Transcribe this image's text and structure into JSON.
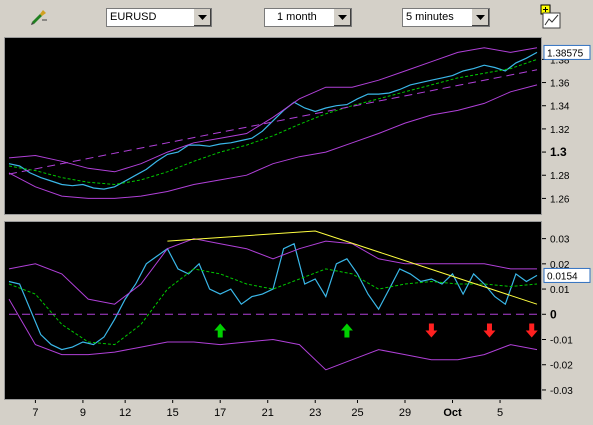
{
  "toolbar": {
    "symbol": "EURUSD",
    "range": "1 month",
    "interval": "5 minutes"
  },
  "colors": {
    "price": "#3ab7e8",
    "band": "#b040d8",
    "ma": "#00c800",
    "trend": "#ffff40",
    "up_arrow": "#00d000",
    "down_arrow": "#ff2020",
    "last_value_border": "#3070c0"
  },
  "chart_data": [
    {
      "type": "line",
      "panel": "price",
      "ylim": [
        1.25,
        1.395
      ],
      "yticks": [
        "1.26",
        "1.28",
        "1.3",
        "1.32",
        "1.34",
        "1.36",
        "1.38"
      ],
      "bold_ticks": [
        "1.3"
      ],
      "last_value": "1.38575",
      "xlim": [
        0,
        100
      ],
      "series": [
        {
          "role": "price",
          "x": [
            0,
            2,
            4,
            6,
            8,
            10,
            12,
            14,
            16,
            18,
            20,
            22,
            24,
            26,
            28,
            30,
            32,
            34,
            36,
            38,
            40,
            42,
            44,
            46,
            48,
            50,
            52,
            54,
            56,
            58,
            60,
            62,
            64,
            66,
            68,
            70,
            72,
            74,
            76,
            78,
            80,
            82,
            84,
            86,
            88,
            90,
            92,
            94,
            96,
            98,
            100
          ],
          "y": [
            1.29,
            1.288,
            1.282,
            1.278,
            1.275,
            1.272,
            1.271,
            1.272,
            1.269,
            1.268,
            1.27,
            1.275,
            1.28,
            1.285,
            1.292,
            1.298,
            1.3,
            1.306,
            1.306,
            1.305,
            1.307,
            1.308,
            1.31,
            1.312,
            1.318,
            1.327,
            1.336,
            1.343,
            1.338,
            1.335,
            1.338,
            1.34,
            1.341,
            1.346,
            1.35,
            1.35,
            1.351,
            1.354,
            1.358,
            1.36,
            1.362,
            1.364,
            1.366,
            1.37,
            1.372,
            1.375,
            1.373,
            1.37,
            1.377,
            1.381,
            1.386
          ]
        },
        {
          "role": "ma",
          "x": [
            0,
            5,
            10,
            15,
            20,
            25,
            30,
            35,
            40,
            45,
            50,
            55,
            60,
            65,
            70,
            75,
            80,
            85,
            90,
            95,
            100
          ],
          "y": [
            1.288,
            1.284,
            1.278,
            1.274,
            1.272,
            1.276,
            1.283,
            1.292,
            1.3,
            1.306,
            1.314,
            1.324,
            1.333,
            1.34,
            1.346,
            1.352,
            1.358,
            1.364,
            1.368,
            1.372,
            1.38
          ]
        },
        {
          "role": "upper_band",
          "x": [
            0,
            5,
            10,
            15,
            20,
            25,
            30,
            35,
            40,
            45,
            50,
            55,
            60,
            65,
            70,
            75,
            80,
            85,
            90,
            95,
            100
          ],
          "y": [
            1.295,
            1.297,
            1.292,
            1.286,
            1.283,
            1.29,
            1.3,
            1.308,
            1.312,
            1.316,
            1.33,
            1.346,
            1.356,
            1.356,
            1.362,
            1.37,
            1.378,
            1.386,
            1.39,
            1.386,
            1.39
          ]
        },
        {
          "role": "lower_band",
          "x": [
            0,
            5,
            10,
            15,
            20,
            25,
            30,
            35,
            40,
            45,
            50,
            55,
            60,
            65,
            70,
            75,
            80,
            85,
            90,
            95,
            100
          ],
          "y": [
            1.282,
            1.27,
            1.262,
            1.26,
            1.26,
            1.262,
            1.266,
            1.272,
            1.276,
            1.28,
            1.29,
            1.296,
            1.3,
            1.308,
            1.316,
            1.325,
            1.332,
            1.336,
            1.342,
            1.352,
            1.358
          ]
        },
        {
          "role": "trend",
          "x": [
            0,
            100
          ],
          "y": [
            1.281,
            1.371
          ]
        }
      ]
    },
    {
      "type": "line",
      "panel": "oscillator",
      "ylim": [
        -0.032,
        0.035
      ],
      "yticks": [
        "0.03",
        "0.02",
        "0.01",
        "0",
        "-0.01",
        "-0.02",
        "-0.03"
      ],
      "bold_ticks": [
        "0"
      ],
      "last_value": "0.0154",
      "xlim": [
        0,
        100
      ],
      "xticks": [
        {
          "label": "7",
          "x": 5
        },
        {
          "label": "9",
          "x": 14
        },
        {
          "label": "12",
          "x": 22
        },
        {
          "label": "15",
          "x": 31
        },
        {
          "label": "17",
          "x": 40
        },
        {
          "label": "21",
          "x": 49
        },
        {
          "label": "23",
          "x": 58
        },
        {
          "label": "25",
          "x": 66
        },
        {
          "label": "29",
          "x": 75
        },
        {
          "label": "Oct",
          "x": 84
        },
        {
          "label": "5",
          "x": 93
        }
      ],
      "bold_xticks": [
        "Oct"
      ],
      "series": [
        {
          "role": "oscillator",
          "x": [
            0,
            2,
            4,
            6,
            8,
            10,
            12,
            14,
            16,
            18,
            20,
            22,
            24,
            26,
            28,
            30,
            32,
            34,
            36,
            38,
            40,
            42,
            44,
            46,
            48,
            50,
            52,
            54,
            56,
            58,
            60,
            62,
            64,
            66,
            68,
            70,
            72,
            74,
            76,
            78,
            80,
            82,
            84,
            86,
            88,
            90,
            92,
            94,
            96,
            98,
            100
          ],
          "y": [
            0.013,
            0.012,
            0.002,
            -0.008,
            -0.012,
            -0.014,
            -0.013,
            -0.011,
            -0.012,
            -0.009,
            -0.002,
            0.006,
            0.012,
            0.02,
            0.023,
            0.026,
            0.018,
            0.016,
            0.02,
            0.01,
            0.008,
            0.01,
            0.004,
            0.007,
            0.008,
            0.01,
            0.026,
            0.028,
            0.012,
            0.014,
            0.007,
            0.02,
            0.022,
            0.016,
            0.008,
            0.002,
            0.01,
            0.018,
            0.016,
            0.013,
            0.014,
            0.012,
            0.016,
            0.008,
            0.016,
            0.012,
            0.007,
            0.004,
            0.016,
            0.013,
            0.0154
          ]
        },
        {
          "role": "ma",
          "x": [
            0,
            5,
            10,
            15,
            20,
            25,
            30,
            35,
            40,
            45,
            50,
            55,
            60,
            65,
            70,
            75,
            80,
            85,
            90,
            95,
            100
          ],
          "y": [
            0.012,
            0.008,
            -0.004,
            -0.011,
            -0.012,
            -0.004,
            0.01,
            0.018,
            0.016,
            0.012,
            0.01,
            0.014,
            0.018,
            0.016,
            0.01,
            0.012,
            0.013,
            0.012,
            0.012,
            0.011,
            0.012
          ]
        },
        {
          "role": "upper_band",
          "x": [
            0,
            5,
            10,
            15,
            20,
            25,
            30,
            35,
            40,
            45,
            50,
            55,
            60,
            65,
            70,
            75,
            80,
            85,
            90,
            95,
            100
          ],
          "y": [
            0.018,
            0.02,
            0.016,
            0.006,
            0.004,
            0.012,
            0.026,
            0.03,
            0.028,
            0.026,
            0.022,
            0.026,
            0.029,
            0.028,
            0.022,
            0.02,
            0.02,
            0.02,
            0.02,
            0.018,
            0.018
          ]
        },
        {
          "role": "lower_band",
          "x": [
            0,
            5,
            10,
            15,
            20,
            25,
            30,
            35,
            40,
            45,
            50,
            55,
            60,
            65,
            70,
            75,
            80,
            85,
            90,
            95,
            100
          ],
          "y": [
            0.006,
            -0.012,
            -0.016,
            -0.016,
            -0.015,
            -0.013,
            -0.011,
            -0.011,
            -0.012,
            -0.011,
            -0.01,
            -0.012,
            -0.022,
            -0.018,
            -0.014,
            -0.016,
            -0.018,
            -0.018,
            -0.016,
            -0.012,
            -0.014
          ]
        },
        {
          "role": "trend",
          "x": [
            30,
            58,
            100
          ],
          "y": [
            0.029,
            0.033,
            0.004
          ]
        },
        {
          "role": "zero_line",
          "x": [
            0,
            100
          ],
          "y": [
            0,
            0
          ]
        }
      ],
      "signals": [
        {
          "kind": "up",
          "x": 40
        },
        {
          "kind": "up",
          "x": 64
        },
        {
          "kind": "down",
          "x": 80
        },
        {
          "kind": "down",
          "x": 91
        },
        {
          "kind": "down",
          "x": 99
        }
      ]
    }
  ]
}
